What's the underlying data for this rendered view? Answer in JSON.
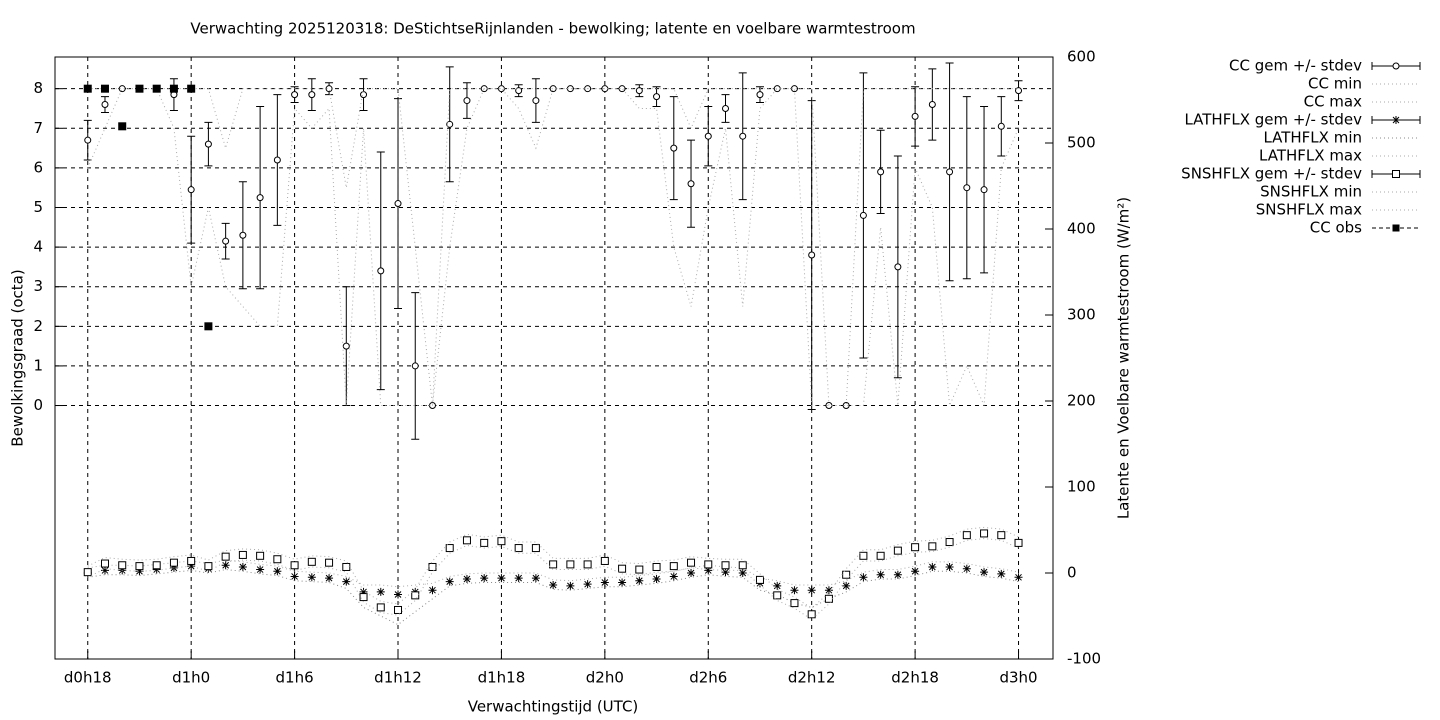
{
  "chart_data": {
    "type": "errorbar",
    "title": "Verwachting 2025120318: DeStichtseRijnlanden - bewolking; latente en voelbare warmtestroom",
    "x_label": "Verwachtingstijd (UTC)",
    "y_label": "Bewolkingsgraad (octa)",
    "y2_label": "Latente en Voelbare warmtestroom (W/m²)",
    "grid": true,
    "legend": "outside-right",
    "xlim": [
      16.1,
      74
    ],
    "xticks": [
      {
        "value": 18,
        "label": "d0h18"
      },
      {
        "value": 24,
        "label": "d1h0"
      },
      {
        "value": 30,
        "label": "d1h6"
      },
      {
        "value": 36,
        "label": "d1h12"
      },
      {
        "value": 42,
        "label": "d1h18"
      },
      {
        "value": 48,
        "label": "d2h0"
      },
      {
        "value": 54,
        "label": "d2h6"
      },
      {
        "value": 60,
        "label": "d2h12"
      },
      {
        "value": 66,
        "label": "d2h18"
      },
      {
        "value": 72,
        "label": "d3h0"
      }
    ],
    "ylim": [
      -6.4,
      8.8
    ],
    "yticks": [
      0,
      1,
      2,
      3,
      4,
      5,
      6,
      7,
      8
    ],
    "y2lim": [
      -100,
      600
    ],
    "y2ticks": [
      -100,
      0,
      100,
      200,
      300,
      400,
      500,
      600
    ],
    "x": [
      18,
      19,
      20,
      21,
      22,
      23,
      24,
      25,
      26,
      27,
      28,
      29,
      30,
      31,
      32,
      33,
      34,
      35,
      36,
      37,
      38,
      39,
      40,
      41,
      42,
      43,
      44,
      45,
      46,
      47,
      48,
      49,
      50,
      51,
      52,
      53,
      54,
      55,
      56,
      57,
      58,
      59,
      60,
      61,
      62,
      63,
      64,
      65,
      66,
      67,
      68,
      69,
      70,
      71,
      72
    ],
    "series": [
      {
        "name": "CC gem +/- stdev",
        "color": "#000000",
        "style": "errorbar-circle",
        "values": [
          6.7,
          7.6,
          8,
          8,
          8,
          7.85,
          5.45,
          6.6,
          4.15,
          4.3,
          5.25,
          6.2,
          7.85,
          7.85,
          8,
          1.5,
          7.85,
          3.4,
          5.1,
          1,
          0,
          7.1,
          7.7,
          8,
          8,
          7.95,
          7.7,
          8,
          8,
          8,
          8,
          8,
          7.95,
          7.8,
          6.5,
          5.6,
          6.8,
          7.5,
          6.8,
          7.85,
          8,
          8,
          3.8,
          0,
          0,
          4.8,
          5.9,
          3.5,
          7.3,
          7.6,
          5.9,
          5.5,
          5.45,
          7.05,
          7.95
        ],
        "errors": [
          0.5,
          0.2,
          0,
          0,
          0,
          0.4,
          1.35,
          0.55,
          0.45,
          1.35,
          2.3,
          1.65,
          0.2,
          0.4,
          0.15,
          1.5,
          0.4,
          3,
          2.65,
          1.85,
          0,
          1.45,
          0.45,
          0,
          0,
          0.15,
          0.55,
          0,
          0,
          0,
          0,
          0,
          0.15,
          0.25,
          1.3,
          1.1,
          0.75,
          0.35,
          1.6,
          0.2,
          0,
          0,
          3.9,
          0,
          0,
          3.6,
          1.05,
          2.8,
          0.75,
          0.9,
          2.75,
          2.3,
          2.1,
          0.75,
          0.25
        ]
      },
      {
        "name": "CC min",
        "color": "#aaaaaa",
        "style": "dotted",
        "values": [
          6,
          7,
          8,
          8,
          8,
          7,
          3,
          5,
          3,
          2.5,
          2,
          2,
          7.5,
          7,
          7.5,
          0,
          7,
          0,
          0,
          0,
          0,
          4,
          7,
          8,
          8,
          7.5,
          6.5,
          8,
          8,
          8,
          8,
          8,
          7.5,
          7.5,
          4,
          2.5,
          5,
          7,
          2.5,
          7.5,
          8,
          8,
          0,
          0,
          0,
          0,
          4.5,
          0,
          6,
          5,
          0,
          1,
          0,
          6,
          7
        ]
      },
      {
        "name": "CC max",
        "color": "#aaaaaa",
        "style": "dotted",
        "values": [
          8,
          8,
          8,
          8,
          8,
          8,
          8,
          8,
          6.5,
          8,
          8,
          8,
          8,
          8,
          8,
          5.5,
          8,
          8,
          8,
          4,
          0,
          8,
          8,
          8,
          8,
          8,
          8,
          8,
          8,
          8,
          8,
          8,
          8,
          8,
          8,
          7,
          8,
          8,
          8,
          8,
          8,
          8,
          8,
          0,
          0,
          8,
          8,
          8,
          8,
          8,
          8,
          8,
          8,
          8,
          8
        ]
      },
      {
        "name": "LATHFLX gem +/- stdev",
        "color": "#000000",
        "style": "star",
        "axis": "y2",
        "values": [
          0,
          3,
          3,
          2,
          4,
          6,
          8,
          5,
          9,
          7,
          4,
          2,
          -4,
          -5,
          -6,
          -10,
          -22,
          -22,
          -25,
          -22,
          -20,
          -10,
          -7,
          -6,
          -6,
          -6,
          -6,
          -14,
          -15,
          -13,
          -11,
          -11,
          -9,
          -7,
          -4,
          0,
          3,
          1,
          0,
          -12,
          -15,
          -20,
          -20,
          -20,
          -15,
          -5,
          -2,
          -2,
          2,
          7,
          7,
          5,
          1,
          -1,
          -5
        ]
      },
      {
        "name": "LATHFLX min",
        "color": "#888888",
        "style": "dotted",
        "axis": "y2",
        "values": [
          -5,
          -2,
          -2,
          -3,
          -1,
          1,
          3,
          0,
          4,
          2,
          -1,
          -3,
          -9,
          -10,
          -11,
          -18,
          -40,
          -50,
          -60,
          -45,
          -30,
          -15,
          -12,
          -11,
          -11,
          -11,
          -11,
          -19,
          -20,
          -18,
          -16,
          -16,
          -14,
          -12,
          -9,
          -5,
          -2,
          -4,
          -5,
          -20,
          -25,
          -35,
          -40,
          -30,
          -22,
          -10,
          -7,
          -7,
          -3,
          2,
          2,
          0,
          -4,
          -6,
          -10
        ]
      },
      {
        "name": "LATHFLX max",
        "color": "#aaaaaa",
        "style": "dotted",
        "axis": "y2",
        "values": [
          6,
          9,
          9,
          8,
          10,
          12,
          14,
          11,
          15,
          13,
          10,
          8,
          2,
          1,
          0,
          -4,
          -14,
          -14,
          -16,
          -14,
          -12,
          -4,
          -1,
          0,
          0,
          0,
          0,
          -8,
          -9,
          -7,
          -5,
          -5,
          -3,
          -1,
          2,
          6,
          9,
          7,
          6,
          -6,
          -9,
          -14,
          -14,
          -14,
          -9,
          1,
          4,
          4,
          8,
          13,
          13,
          11,
          7,
          5,
          1
        ]
      },
      {
        "name": "SNSHFLX gem +/- stdev",
        "color": "#000000",
        "style": "square",
        "axis": "y2",
        "values": [
          1,
          11,
          9,
          8,
          9,
          12,
          14,
          8,
          19,
          21,
          20,
          16,
          9,
          13,
          12,
          7,
          -28,
          -40,
          -43,
          -26,
          7,
          29,
          38,
          35,
          37,
          29,
          29,
          10,
          10,
          10,
          14,
          5,
          4,
          7,
          8,
          12,
          10,
          9,
          9,
          -8,
          -26,
          -35,
          -48,
          -30,
          -2,
          20,
          20,
          26,
          30,
          31,
          36,
          44,
          46,
          44,
          35
        ]
      },
      {
        "name": "SNSHFLX min",
        "color": "#aaaaaa",
        "style": "dotted",
        "axis": "y2",
        "values": [
          -5,
          5,
          3,
          2,
          3,
          6,
          8,
          2,
          13,
          15,
          14,
          10,
          3,
          7,
          6,
          1,
          -34,
          -46,
          -49,
          -32,
          1,
          23,
          32,
          29,
          31,
          23,
          23,
          4,
          4,
          4,
          8,
          -1,
          -2,
          1,
          2,
          6,
          4,
          3,
          3,
          -14,
          -32,
          -41,
          -54,
          -36,
          -8,
          14,
          14,
          20,
          24,
          25,
          30,
          38,
          40,
          38,
          29
        ]
      },
      {
        "name": "SNSHFLX max",
        "color": "#aaaaaa",
        "style": "dotted",
        "axis": "y2",
        "values": [
          8,
          18,
          16,
          15,
          16,
          19,
          21,
          15,
          26,
          28,
          27,
          23,
          16,
          20,
          19,
          14,
          -21,
          -33,
          -36,
          -19,
          14,
          36,
          45,
          42,
          44,
          36,
          36,
          17,
          17,
          17,
          21,
          12,
          11,
          14,
          15,
          19,
          17,
          16,
          16,
          -1,
          -19,
          -28,
          -41,
          -23,
          5,
          27,
          27,
          33,
          37,
          38,
          43,
          51,
          53,
          51,
          42
        ]
      },
      {
        "name": "CC obs",
        "color": "#000000",
        "style": "filled-square",
        "values": [
          8,
          8,
          7.05,
          8,
          8,
          8,
          8,
          2,
          null,
          null,
          null,
          null,
          null,
          null,
          null,
          null,
          null,
          null,
          null,
          null,
          null,
          null,
          null,
          null,
          null,
          null,
          null,
          null,
          null,
          null,
          null,
          null,
          null,
          null,
          null,
          null,
          null,
          null,
          null,
          null,
          null,
          null,
          null,
          null,
          null,
          null,
          null,
          null,
          null,
          null,
          null,
          null,
          null,
          null,
          null
        ]
      }
    ]
  }
}
